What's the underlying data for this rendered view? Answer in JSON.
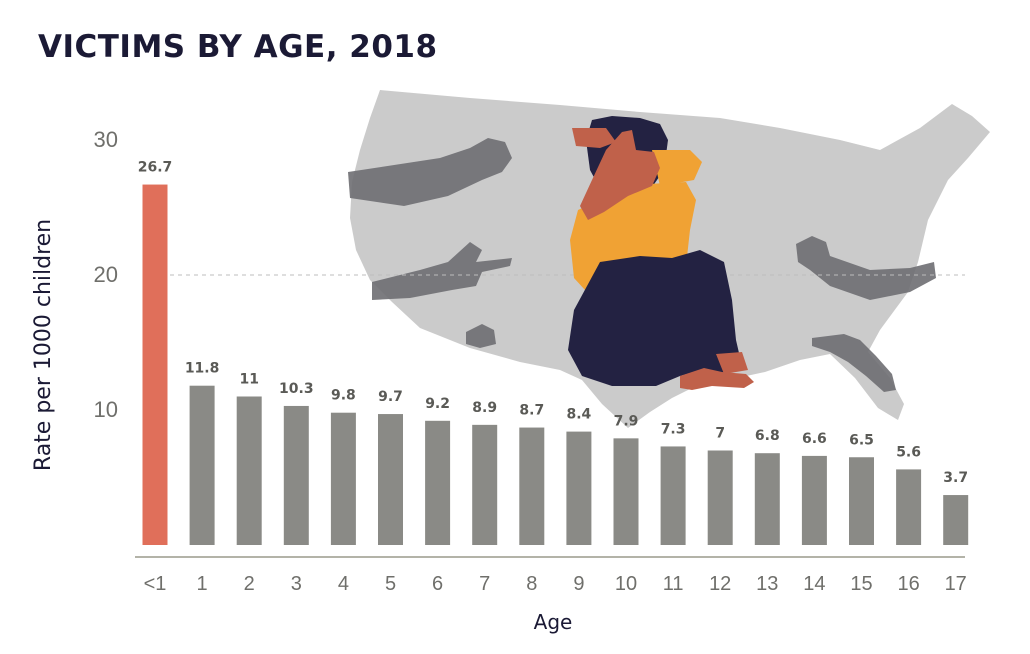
{
  "chart_data": {
    "type": "bar",
    "title": "VICTIMS BY AGE, 2018",
    "xlabel": "Age",
    "ylabel": "Rate per 1000 children",
    "ylim": [
      0,
      30
    ],
    "yticks": [
      10,
      20,
      30
    ],
    "grid": false,
    "reference_line": 20,
    "categories": [
      "<1",
      "1",
      "2",
      "3",
      "4",
      "5",
      "6",
      "7",
      "8",
      "9",
      "10",
      "11",
      "12",
      "13",
      "14",
      "15",
      "16",
      "17"
    ],
    "values": [
      26.7,
      11.8,
      11,
      10.3,
      9.8,
      9.7,
      9.2,
      8.9,
      8.7,
      8.4,
      7.9,
      7.3,
      7,
      6.8,
      6.6,
      6.5,
      5.6,
      3.7
    ],
    "value_labels": [
      "26.7",
      "11.8",
      "11",
      "10.3",
      "9.8",
      "9.7",
      "9.2",
      "8.9",
      "8.7",
      "8.4",
      "7.9",
      "7.3",
      "7",
      "6.8",
      "6.6",
      "6.5",
      "5.6",
      "3.7"
    ],
    "highlight_index": 0,
    "colors": {
      "highlight": "#e06f5a",
      "bar": "#8a8a86",
      "axis": "#9a9a8c",
      "title": "#1b1a35",
      "map": "#cbcbcb",
      "shadow": "#6e6e72",
      "shirt": "#f0a234",
      "pants": "#232242",
      "skin": "#c0614a"
    }
  },
  "illustration": {
    "background_icon": "us-map-icon",
    "figure_icon": "crouching-person-icon",
    "hand_icons": [
      "fist-shadow-icon",
      "pointing-hand-shadow-icon"
    ]
  }
}
